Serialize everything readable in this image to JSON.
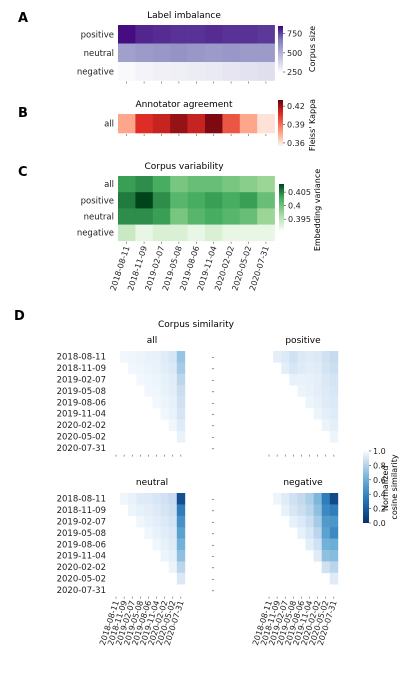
{
  "chart_data": [
    {
      "panel": "A",
      "type": "heatmap",
      "title": "Label imbalance",
      "rows": [
        "positive",
        "neutral",
        "negative"
      ],
      "x": [
        "2018-08-11",
        "2018-11-09",
        "2019-02-07",
        "2019-05-08",
        "2019-08-06",
        "2019-11-04",
        "2020-02-02",
        "2020-05-02",
        "2020-07-31"
      ],
      "values": [
        [
          830,
          790,
          780,
          770,
          770,
          780,
          770,
          770,
          760
        ],
        [
          540,
          560,
          570,
          580,
          570,
          560,
          570,
          560,
          560
        ],
        [
          260,
          275,
          285,
          290,
          300,
          305,
          320,
          330,
          340
        ]
      ],
      "colorbar": {
        "label": "Corpus size",
        "ticks": [
          250,
          500,
          750
        ],
        "range": [
          250,
          850
        ],
        "colormap": "purples"
      }
    },
    {
      "panel": "B",
      "type": "heatmap",
      "title": "Annotator agreement",
      "rows": [
        "all"
      ],
      "x": [
        "2018-08-11",
        "2018-11-09",
        "2019-02-07",
        "2019-05-08",
        "2019-08-06",
        "2019-11-04",
        "2020-02-02",
        "2020-05-02",
        "2020-07-31"
      ],
      "values": [
        [
          0.375,
          0.405,
          0.41,
          0.42,
          0.41,
          0.425,
          0.395,
          0.375,
          0.36
        ]
      ],
      "colorbar": {
        "label": "Fleiss' Kappa",
        "ticks": [
          0.36,
          0.39,
          0.42
        ],
        "range": [
          0.355,
          0.43
        ],
        "colormap": "reds"
      }
    },
    {
      "panel": "C",
      "type": "heatmap",
      "title": "Corpus variability",
      "rows": [
        "all",
        "positive",
        "neutral",
        "negative"
      ],
      "x": [
        "2018-08-11",
        "2018-11-09",
        "2019-02-07",
        "2019-05-08",
        "2019-08-06",
        "2019-11-04",
        "2020-02-02",
        "2020-05-02",
        "2020-07-31"
      ],
      "values": [
        [
          0.403,
          0.404,
          0.402,
          0.399,
          0.4,
          0.4,
          0.399,
          0.398,
          0.397
        ],
        [
          0.405,
          0.409,
          0.404,
          0.401,
          0.402,
          0.403,
          0.402,
          0.403,
          0.4
        ],
        [
          0.404,
          0.404,
          0.403,
          0.399,
          0.401,
          0.402,
          0.401,
          0.4,
          0.397
        ],
        [
          0.394,
          0.392,
          0.393,
          0.393,
          0.392,
          0.393,
          0.392,
          0.392,
          0.392
        ]
      ],
      "colorbar": {
        "label": "Embedding variance",
        "ticks": [
          0.395,
          0.4,
          0.405
        ],
        "range": [
          0.391,
          0.408
        ],
        "colormap": "greens"
      }
    },
    {
      "panel": "D",
      "type": "heatmap",
      "title": "Corpus similarity",
      "x": [
        "2018-08-11",
        "2018-11-09",
        "2019-02-07",
        "2019-05-08",
        "2019-08-06",
        "2019-11-04",
        "2020-02-02",
        "2020-05-02",
        "2020-07-31"
      ],
      "y": [
        "2018-08-11",
        "2018-11-09",
        "2019-02-07",
        "2019-05-08",
        "2019-08-06",
        "2019-11-04",
        "2020-02-02",
        "2020-05-02",
        "2020-07-31"
      ],
      "note_layout": "upper triangle",
      "colorbar": {
        "label": "Normalized cosine similarity",
        "ticks": [
          0.0,
          0.2,
          0.4,
          0.6,
          0.8,
          1.0
        ],
        "range": [
          0,
          1
        ],
        "colormap": "blues-reversed"
      },
      "subplots": [
        {
          "name": "all",
          "values": [
            [
              null,
              0.97,
              0.96,
              0.95,
              0.93,
              0.92,
              0.88,
              0.84,
              0.62
            ],
            [
              null,
              null,
              0.97,
              0.96,
              0.94,
              0.93,
              0.89,
              0.86,
              0.66
            ],
            [
              null,
              null,
              null,
              0.98,
              0.96,
              0.95,
              0.92,
              0.89,
              0.72
            ],
            [
              null,
              null,
              null,
              null,
              0.97,
              0.96,
              0.93,
              0.9,
              0.77
            ],
            [
              null,
              null,
              null,
              null,
              null,
              0.97,
              0.95,
              0.92,
              0.8
            ],
            [
              null,
              null,
              null,
              null,
              null,
              null,
              0.96,
              0.93,
              0.83
            ],
            [
              null,
              null,
              null,
              null,
              null,
              null,
              null,
              0.96,
              0.88
            ],
            [
              null,
              null,
              null,
              null,
              null,
              null,
              null,
              null,
              0.93
            ],
            [
              null,
              null,
              null,
              null,
              null,
              null,
              null,
              null,
              null
            ]
          ]
        },
        {
          "name": "positive",
          "values": [
            [
              null,
              0.9,
              0.86,
              0.8,
              0.86,
              0.88,
              0.86,
              0.8,
              0.75
            ],
            [
              null,
              null,
              0.9,
              0.84,
              0.88,
              0.9,
              0.88,
              0.82,
              0.78
            ],
            [
              null,
              null,
              null,
              0.92,
              0.93,
              0.92,
              0.9,
              0.85,
              0.82
            ],
            [
              null,
              null,
              null,
              null,
              0.95,
              0.93,
              0.9,
              0.87,
              0.84
            ],
            [
              null,
              null,
              null,
              null,
              null,
              0.95,
              0.92,
              0.88,
              0.86
            ],
            [
              null,
              null,
              null,
              null,
              null,
              null,
              0.95,
              0.9,
              0.88
            ],
            [
              null,
              null,
              null,
              null,
              null,
              null,
              null,
              0.94,
              0.91
            ],
            [
              null,
              null,
              null,
              null,
              null,
              null,
              null,
              null,
              0.95
            ],
            [
              null,
              null,
              null,
              null,
              null,
              null,
              null,
              null,
              null
            ]
          ]
        },
        {
          "name": "neutral",
          "values": [
            [
              null,
              0.96,
              0.93,
              0.88,
              0.87,
              0.84,
              0.8,
              0.75,
              0.12
            ],
            [
              null,
              null,
              0.95,
              0.92,
              0.9,
              0.87,
              0.83,
              0.78,
              0.3
            ],
            [
              null,
              null,
              null,
              0.96,
              0.93,
              0.9,
              0.86,
              0.82,
              0.38
            ],
            [
              null,
              null,
              null,
              null,
              0.96,
              0.93,
              0.89,
              0.85,
              0.45
            ],
            [
              null,
              null,
              null,
              null,
              null,
              0.96,
              0.92,
              0.88,
              0.52
            ],
            [
              null,
              null,
              null,
              null,
              null,
              null,
              0.95,
              0.91,
              0.6
            ],
            [
              null,
              null,
              null,
              null,
              null,
              null,
              null,
              0.95,
              0.72
            ],
            [
              null,
              null,
              null,
              null,
              null,
              null,
              null,
              null,
              0.85
            ],
            [
              null,
              null,
              null,
              null,
              null,
              null,
              null,
              null,
              null
            ]
          ]
        },
        {
          "name": "negative",
          "values": [
            [
              null,
              0.95,
              0.88,
              0.8,
              0.74,
              0.68,
              0.55,
              0.3,
              0.1
            ],
            [
              null,
              null,
              0.92,
              0.84,
              0.78,
              0.72,
              0.6,
              0.35,
              0.3
            ],
            [
              null,
              null,
              null,
              0.92,
              0.86,
              0.78,
              0.66,
              0.42,
              0.4
            ],
            [
              null,
              null,
              null,
              null,
              0.92,
              0.84,
              0.72,
              0.45,
              0.35
            ],
            [
              null,
              null,
              null,
              null,
              null,
              0.9,
              0.8,
              0.52,
              0.5
            ],
            [
              null,
              null,
              null,
              null,
              null,
              null,
              0.88,
              0.6,
              0.58
            ],
            [
              null,
              null,
              null,
              null,
              null,
              null,
              null,
              0.8,
              0.72
            ],
            [
              null,
              null,
              null,
              null,
              null,
              null,
              null,
              null,
              0.88
            ],
            [
              null,
              null,
              null,
              null,
              null,
              null,
              null,
              null,
              null
            ]
          ]
        }
      ]
    }
  ]
}
